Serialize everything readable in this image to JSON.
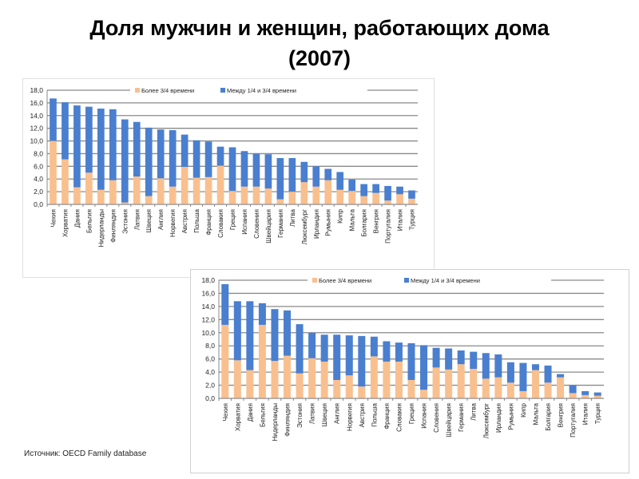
{
  "title": {
    "line1": "Доля мужчин и женщин, работающих дома",
    "line2": "(2007)"
  },
  "source": "Источник: OECD Family database",
  "colors": {
    "more_3_4": "#F9C08F",
    "between": "#4A7FCF"
  },
  "chart_data": [
    {
      "type": "bar",
      "stacked": true,
      "title": "",
      "ylim": [
        0,
        18
      ],
      "yticks": [
        "0,0",
        "2,0",
        "4,0",
        "6,0",
        "8,0",
        "10,0",
        "12,0",
        "14,0",
        "16,0",
        "18,0"
      ],
      "legend": [
        "Более 3/4 времени",
        "Между 1/4 и 3/4 времени"
      ],
      "legend_position": "top",
      "categories": [
        "Чехия",
        "Хорватия",
        "Дания",
        "Бельгия",
        "Нидерланды",
        "Финляндия",
        "Эстония",
        "Латвия",
        "Швеция",
        "Англия",
        "Норвегия",
        "Австрия",
        "Польша",
        "Франция",
        "Словакия",
        "Греция",
        "Испания",
        "Словения",
        "Швейцария",
        "Германия",
        "Литва",
        "Люксембург",
        "Ирландия",
        "Румыния",
        "Кипр",
        "Мальта",
        "Болгария",
        "Венгрия",
        "Португалия",
        "Италия",
        "Турция"
      ],
      "series": [
        {
          "name": "Более 3/4 времени",
          "values": [
            10.0,
            7.1,
            2.7,
            5.0,
            2.3,
            3.8,
            0.3,
            4.4,
            1.3,
            4.1,
            2.8,
            5.9,
            4.2,
            4.3,
            6.1,
            2.1,
            2.8,
            2.8,
            2.5,
            0.8,
            2.0,
            3.5,
            2.8,
            3.8,
            2.3,
            2.1,
            1.3,
            1.8,
            0.6,
            1.6,
            0.9
          ]
        },
        {
          "name": "Между 1/4 и 3/4 времени",
          "values": [
            6.7,
            9.0,
            12.9,
            10.4,
            12.8,
            11.2,
            13.1,
            8.6,
            10.8,
            7.7,
            8.9,
            5.1,
            5.9,
            5.6,
            3.0,
            6.9,
            5.6,
            5.2,
            5.4,
            6.5,
            5.3,
            3.2,
            3.2,
            1.8,
            2.8,
            1.8,
            1.9,
            1.4,
            2.3,
            1.2,
            1.3
          ]
        }
      ]
    },
    {
      "type": "bar",
      "stacked": true,
      "title": "",
      "ylim": [
        0,
        18
      ],
      "yticks": [
        "0,0",
        "2,0",
        "4,0",
        "6,0",
        "8,0",
        "10,0",
        "12,0",
        "14,0",
        "16,0",
        "18,0"
      ],
      "legend": [
        "Более 3/4 времени",
        "Между 1/4 и 3/4 времени"
      ],
      "legend_position": "top",
      "categories": [
        "Чехия",
        "Хорватия",
        "Дания",
        "Бельгия",
        "Нидерланды",
        "Финляндия",
        "Эстония",
        "Латвия",
        "Швеция",
        "Англия",
        "Норвегия",
        "Австрия",
        "Польша",
        "Франция",
        "Словакия",
        "Греция",
        "Испания",
        "Словения",
        "Швейцария",
        "Германия",
        "Литва",
        "Люксембург",
        "Ирландия",
        "Румыния",
        "Кипр",
        "Мальта",
        "Болгария",
        "Венгрия",
        "Португалия",
        "Италия",
        "Турция"
      ],
      "series": [
        {
          "name": "Более 3/4 времени",
          "values": [
            11.2,
            5.8,
            4.3,
            11.2,
            5.7,
            6.5,
            3.8,
            6.1,
            5.6,
            2.8,
            3.5,
            1.8,
            6.4,
            5.6,
            5.6,
            2.8,
            1.3,
            4.7,
            4.4,
            5.2,
            4.5,
            3.0,
            3.2,
            2.4,
            1.1,
            4.3,
            2.4,
            3.2,
            0.8,
            0.5,
            0.4
          ]
        },
        {
          "name": "Между 1/4 и 3/4 времени",
          "values": [
            6.2,
            9.0,
            10.5,
            3.3,
            7.9,
            6.9,
            7.5,
            3.9,
            4.1,
            6.9,
            6.1,
            7.7,
            3.0,
            3.1,
            2.9,
            5.6,
            6.8,
            3.0,
            3.2,
            2.1,
            2.6,
            3.9,
            3.5,
            3.1,
            4.3,
            0.9,
            2.6,
            0.5,
            1.2,
            0.6,
            0.5
          ]
        }
      ]
    }
  ]
}
